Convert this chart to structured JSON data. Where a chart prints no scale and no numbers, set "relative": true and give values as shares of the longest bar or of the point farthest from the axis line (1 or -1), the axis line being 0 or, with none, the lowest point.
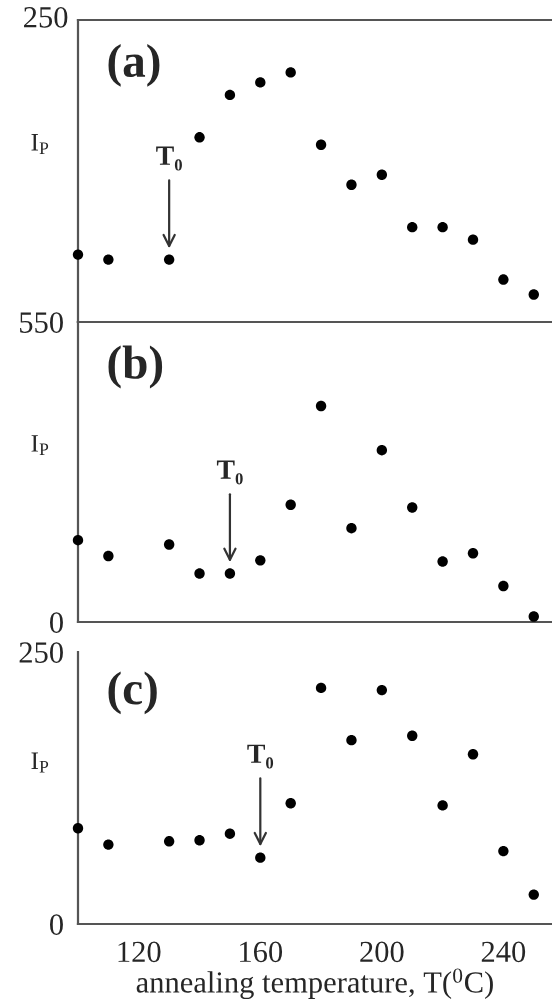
{
  "chart_data": [
    {
      "type": "scatter",
      "title": "(a)",
      "ylabel": "I$_{P}$",
      "x": [
        100,
        110,
        130,
        140,
        150,
        160,
        170,
        180,
        190,
        200,
        210,
        220,
        230,
        240,
        250
      ],
      "series": [
        {
          "color": "#000000",
          "values": [
            0.27,
            0.25,
            0.25,
            0.74,
            0.91,
            0.96,
            1,
            0.71,
            0.55,
            0.59,
            0.38,
            0.38,
            0.33,
            0.17,
            0.11
          ]
        }
      ],
      "relative": true,
      "xlim": [
        100,
        256
      ],
      "xticks": [
        120,
        160,
        200,
        240
      ],
      "tick_labels": false,
      "marker": "circle",
      "annotations": [
        "250",
        {
          "text": "T₀",
          "x": 130,
          "y": 0.25
        }
      ]
    },
    {
      "type": "scatter",
      "title": "(b)",
      "ylabel": "I$_{P}$",
      "x": [
        100,
        110,
        130,
        140,
        150,
        160,
        170,
        180,
        190,
        200,
        210,
        220,
        230,
        240,
        250
      ],
      "series": [
        {
          "color": "#000000",
          "values": [
            150,
            121,
            142,
            89,
            89,
            113,
            215,
            396,
            172,
            315,
            210,
            111,
            126,
            66,
            10
          ]
        }
      ],
      "xlim": [
        100,
        256
      ],
      "xticks": [
        120,
        160,
        200,
        240
      ],
      "ylim": [
        0,
        550
      ],
      "yticks": [
        0,
        550
      ],
      "tick_labels": "y",
      "marker": "circle",
      "annotations": [
        {
          "text": "T₀",
          "x": 150,
          "y": 89
        }
      ]
    },
    {
      "type": "scatter",
      "title": "(c)",
      "ylabel": "I$_{P}$",
      "xlabel": "annealing temperature, T($^{0}$C)",
      "x": [
        100,
        110,
        130,
        140,
        150,
        160,
        170,
        180,
        190,
        200,
        210,
        220,
        230,
        240,
        250
      ],
      "series": [
        {
          "color": "#000000",
          "values": [
            88,
            73,
            76,
            77,
            83,
            61,
            111,
            217,
            169,
            215,
            173,
            109,
            156,
            67,
            27
          ]
        }
      ],
      "xlim": [
        100,
        256
      ],
      "xticks": [
        120,
        160,
        200,
        240
      ],
      "ylim": [
        0,
        250
      ],
      "yticks": [
        0,
        250
      ],
      "marker": "circle",
      "annotations": [
        {
          "text": "T₀",
          "x": 160,
          "y": 61
        }
      ]
    }
  ]
}
